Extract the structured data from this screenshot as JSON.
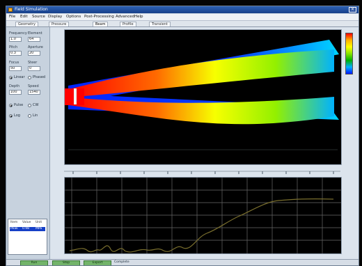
{
  "window": {
    "title": "Field Simulation",
    "close_label": "✕"
  },
  "menu": [
    "File",
    "Edit",
    "Source",
    "Display",
    "Options",
    "Post-Processing",
    "Advanced",
    "Help"
  ],
  "tabs": [
    {
      "label": "Geometry",
      "active": false
    },
    {
      "label": "Pressure",
      "active": false
    },
    {
      "label": "Beam",
      "active": true
    },
    {
      "label": "Profile",
      "active": false
    },
    {
      "label": "Transient",
      "active": false
    }
  ],
  "left_panel": {
    "groups": [
      {
        "label": "Frequency",
        "value": "1.0"
      },
      {
        "label": "Element",
        "value": "64"
      },
      {
        "label": "Pitch",
        "value": "0.3"
      },
      {
        "label": "Aperture",
        "value": "20"
      },
      {
        "label": "Focus",
        "value": "50"
      },
      {
        "label": "Steer",
        "value": "0"
      },
      {
        "label": "Depth",
        "value": "100"
      },
      {
        "label": "Speed",
        "value": "1540"
      }
    ],
    "radios": [
      {
        "label": "Linear",
        "checked": true
      },
      {
        "label": "Phased",
        "checked": false
      },
      {
        "label": "Pulse",
        "checked": true
      },
      {
        "label": "CW",
        "checked": false
      },
      {
        "label": "Log",
        "checked": true
      },
      {
        "label": "Lin",
        "checked": false
      }
    ],
    "results": {
      "headers": [
        "Item",
        "Value",
        "Unit"
      ],
      "selected": [
        "Peak",
        "0.98",
        "MPa"
      ]
    }
  },
  "status_bar": {
    "buttons": [
      "Run",
      "Stop",
      "Export"
    ],
    "message": "Complete"
  },
  "colors": {
    "accent": "#1640c7",
    "status_button": "#73b46a",
    "beam_core": "#ff0000"
  },
  "icons": [
    "app-icon",
    "close-icon",
    "color-scale-icon"
  ]
}
